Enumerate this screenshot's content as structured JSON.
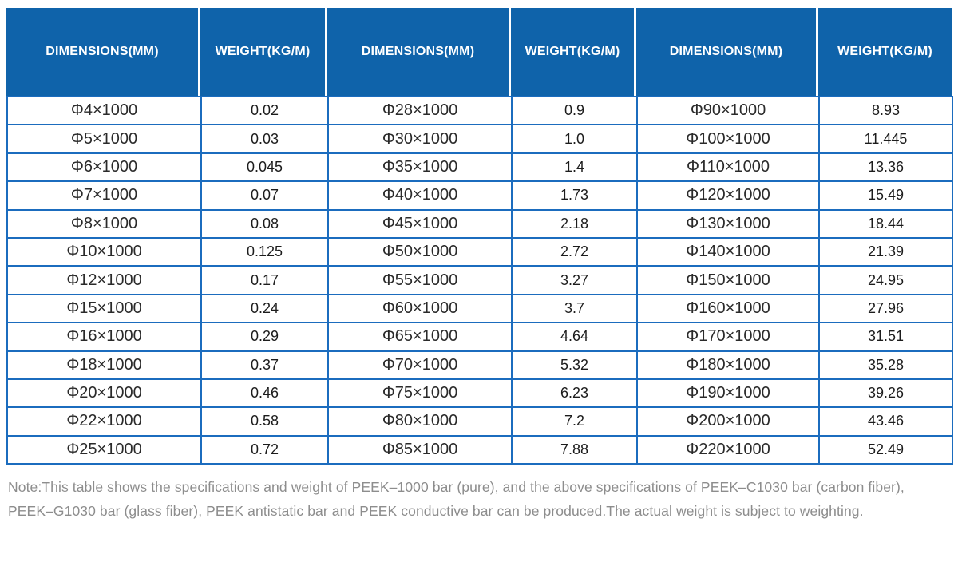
{
  "theme": {
    "header_bg": "#0f63aa",
    "header_text": "#ffffff",
    "grid_color": "#1b6cbe",
    "dimension_text": "#2a2a2a",
    "weight_text": "#1c1c1c",
    "note_text": "#8d8d8d",
    "page_bg": "#ffffff"
  },
  "table": {
    "columns": [
      {
        "name": "dimensions-1",
        "label": "DIMENSIONS(MM)",
        "kind": "dimensions"
      },
      {
        "name": "weight-1",
        "label": "WEIGHT(KG/M)",
        "kind": "weight"
      },
      {
        "name": "dimensions-2",
        "label": "DIMENSIONS(MM)",
        "kind": "dimensions"
      },
      {
        "name": "weight-2",
        "label": "WEIGHT(KG/M)",
        "kind": "weight"
      },
      {
        "name": "dimensions-3",
        "label": "DIMENSIONS(MM)",
        "kind": "dimensions"
      },
      {
        "name": "weight-3",
        "label": "WEIGHT(KG/M)",
        "kind": "weight"
      }
    ],
    "rows": [
      [
        "Φ4×1000",
        "0.02",
        "Φ28×1000",
        "0.9",
        "Φ90×1000",
        "8.93"
      ],
      [
        "Φ5×1000",
        "0.03",
        "Φ30×1000",
        "1.0",
        "Φ100×1000",
        "11.445"
      ],
      [
        "Φ6×1000",
        "0.045",
        "Φ35×1000",
        "1.4",
        "Φ110×1000",
        "13.36"
      ],
      [
        "Φ7×1000",
        "0.07",
        "Φ40×1000",
        "1.73",
        "Φ120×1000",
        "15.49"
      ],
      [
        "Φ8×1000",
        "0.08",
        "Φ45×1000",
        "2.18",
        "Φ130×1000",
        "18.44"
      ],
      [
        "Φ10×1000",
        "0.125",
        "Φ50×1000",
        "2.72",
        "Φ140×1000",
        "21.39"
      ],
      [
        "Φ12×1000",
        "0.17",
        "Φ55×1000",
        "3.27",
        "Φ150×1000",
        "24.95"
      ],
      [
        "Φ15×1000",
        "0.24",
        "Φ60×1000",
        "3.7",
        "Φ160×1000",
        "27.96"
      ],
      [
        "Φ16×1000",
        "0.29",
        "Φ65×1000",
        "4.64",
        "Φ170×1000",
        "31.51"
      ],
      [
        "Φ18×1000",
        "0.37",
        "Φ70×1000",
        "5.32",
        "Φ180×1000",
        "35.28"
      ],
      [
        "Φ20×1000",
        "0.46",
        "Φ75×1000",
        "6.23",
        "Φ190×1000",
        "39.26"
      ],
      [
        "Φ22×1000",
        "0.58",
        "Φ80×1000",
        "7.2",
        "Φ200×1000",
        "43.46"
      ],
      [
        "Φ25×1000",
        "0.72",
        "Φ85×1000",
        "7.88",
        "Φ220×1000",
        "52.49"
      ]
    ]
  },
  "note": {
    "line1": "Note:This table shows the specifications and weight of PEEK–1000 bar (pure), and the above specifications of PEEK–C1030 bar (carbon fiber),",
    "line2": "PEEK–G1030 bar (glass fiber), PEEK antistatic bar and PEEK conductive bar can be produced.The actual weight is subject to weighting."
  }
}
